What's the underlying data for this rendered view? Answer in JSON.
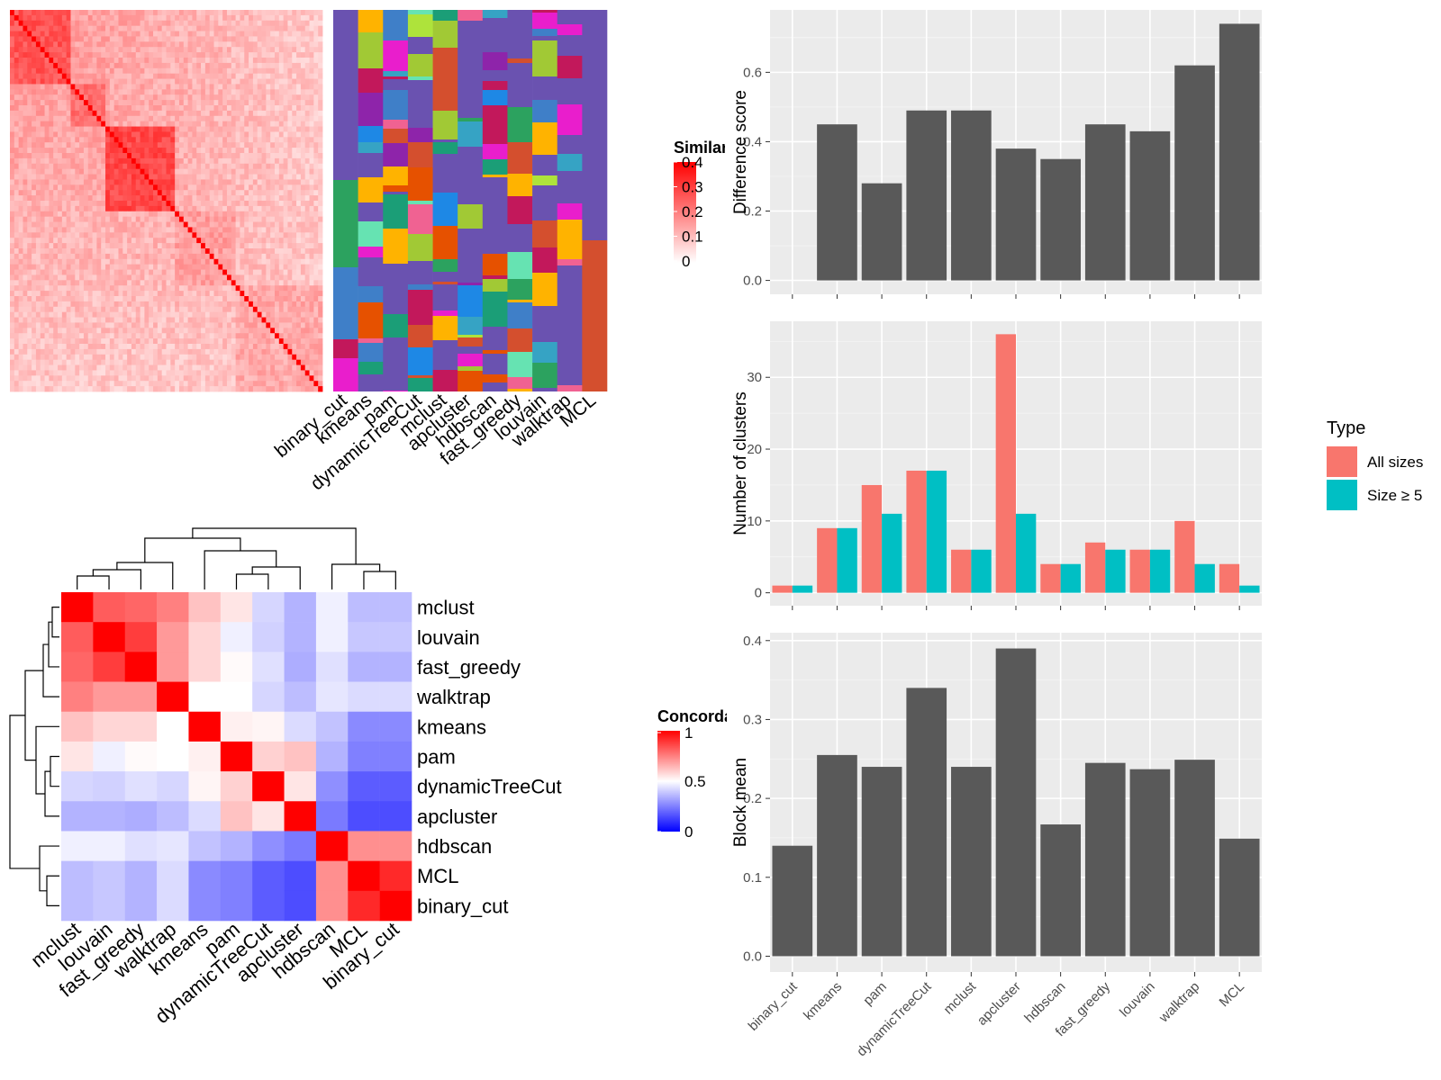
{
  "methods": [
    "binary_cut",
    "kmeans",
    "pam",
    "dynamicTreeCut",
    "mclust",
    "apcluster",
    "hdbscan",
    "fast_greedy",
    "louvain",
    "walktrap",
    "MCL"
  ],
  "similarity_legend": {
    "title": "Similarity",
    "ticks": [
      "0",
      "0.1",
      "0.2",
      "0.3",
      "0.4"
    ]
  },
  "concordance_legend": {
    "title": "Concordance",
    "ticks": [
      "0",
      "0.5",
      "1"
    ]
  },
  "type_legend": {
    "title": "Type",
    "items": [
      "All sizes",
      "Size ≥ 5"
    ]
  },
  "colors": {
    "bar_gray": "#595959",
    "panel_bg": "#EBEBEB",
    "grid": "#FFFFFF",
    "all_sizes": "#F8766D",
    "size_ge5": "#00BFC4",
    "heat_high": "#FF0000",
    "heat_mid": "#FFFFFF",
    "heat_low": "#0000FF",
    "cluster_default": "#6A52B0"
  },
  "chart_data": [
    {
      "type": "heatmap",
      "name": "similarity-heatmap",
      "description_scale": [
        0,
        0.4
      ],
      "legend": "Similarity",
      "cluster_columns": [
        "binary_cut",
        "kmeans",
        "pam",
        "dynamicTreeCut",
        "mclust",
        "apcluster",
        "hdbscan",
        "fast_greedy",
        "louvain",
        "walktrap",
        "MCL"
      ]
    },
    {
      "type": "heatmap",
      "name": "concordance-heatmap",
      "legend": "Concordance",
      "rows": [
        "mclust",
        "louvain",
        "fast_greedy",
        "walktrap",
        "kmeans",
        "pam",
        "dynamicTreeCut",
        "apcluster",
        "hdbscan",
        "MCL",
        "binary_cut"
      ],
      "columns": [
        "mclust",
        "louvain",
        "fast_greedy",
        "walktrap",
        "kmeans",
        "pam",
        "dynamicTreeCut",
        "apcluster",
        "hdbscan",
        "MCL",
        "binary_cut"
      ],
      "values": [
        [
          1.0,
          0.82,
          0.8,
          0.75,
          0.62,
          0.55,
          0.42,
          0.35,
          0.47,
          0.37,
          0.37
        ],
        [
          0.82,
          1.0,
          0.88,
          0.7,
          0.58,
          0.47,
          0.41,
          0.35,
          0.47,
          0.39,
          0.39
        ],
        [
          0.8,
          0.88,
          1.0,
          0.7,
          0.58,
          0.51,
          0.44,
          0.34,
          0.44,
          0.35,
          0.35
        ],
        [
          0.75,
          0.7,
          0.7,
          1.0,
          0.5,
          0.5,
          0.42,
          0.37,
          0.45,
          0.43,
          0.43
        ],
        [
          0.62,
          0.58,
          0.58,
          0.5,
          1.0,
          0.53,
          0.52,
          0.43,
          0.38,
          0.27,
          0.27
        ],
        [
          0.55,
          0.47,
          0.51,
          0.5,
          0.53,
          1.0,
          0.59,
          0.62,
          0.35,
          0.25,
          0.25
        ],
        [
          0.42,
          0.41,
          0.44,
          0.42,
          0.52,
          0.59,
          1.0,
          0.55,
          0.28,
          0.18,
          0.18
        ],
        [
          0.35,
          0.35,
          0.34,
          0.37,
          0.43,
          0.62,
          0.55,
          1.0,
          0.24,
          0.15,
          0.15
        ],
        [
          0.47,
          0.47,
          0.44,
          0.45,
          0.38,
          0.35,
          0.28,
          0.24,
          1.0,
          0.72,
          0.72
        ],
        [
          0.37,
          0.39,
          0.35,
          0.43,
          0.27,
          0.25,
          0.18,
          0.15,
          0.72,
          1.0,
          0.92
        ],
        [
          0.37,
          0.39,
          0.35,
          0.43,
          0.27,
          0.25,
          0.18,
          0.15,
          0.72,
          0.92,
          1.0
        ]
      ],
      "range": [
        0,
        1
      ]
    },
    {
      "type": "bar",
      "name": "difference-score",
      "categories": [
        "binary_cut",
        "kmeans",
        "pam",
        "dynamicTreeCut",
        "mclust",
        "apcluster",
        "hdbscan",
        "fast_greedy",
        "louvain",
        "walktrap",
        "MCL"
      ],
      "values": [
        0.0,
        0.45,
        0.28,
        0.49,
        0.49,
        0.38,
        0.35,
        0.45,
        0.43,
        0.62,
        0.74
      ],
      "ylabel": "Difference score",
      "yticks": [
        0.0,
        0.2,
        0.4,
        0.6
      ],
      "ylim": [
        -0.04,
        0.78
      ]
    },
    {
      "type": "bar",
      "name": "number-of-clusters",
      "categories": [
        "binary_cut",
        "kmeans",
        "pam",
        "dynamicTreeCut",
        "mclust",
        "apcluster",
        "hdbscan",
        "fast_greedy",
        "louvain",
        "walktrap",
        "MCL"
      ],
      "series": [
        {
          "name": "All sizes",
          "values": [
            1,
            9,
            15,
            17,
            6,
            36,
            4,
            7,
            6,
            10,
            4
          ]
        },
        {
          "name": "Size ≥ 5",
          "values": [
            1,
            9,
            11,
            17,
            6,
            11,
            4,
            6,
            6,
            4,
            1
          ]
        }
      ],
      "ylabel": "Number of clusters",
      "yticks": [
        0,
        10,
        20,
        30
      ],
      "ylim": [
        -1.8,
        37.8
      ]
    },
    {
      "type": "bar",
      "name": "block-mean",
      "categories": [
        "binary_cut",
        "kmeans",
        "pam",
        "dynamicTreeCut",
        "mclust",
        "apcluster",
        "hdbscan",
        "fast_greedy",
        "louvain",
        "walktrap",
        "MCL"
      ],
      "values": [
        0.14,
        0.255,
        0.24,
        0.34,
        0.24,
        0.39,
        0.167,
        0.245,
        0.237,
        0.249,
        0.149
      ],
      "ylabel": "Block mean",
      "yticks": [
        0.0,
        0.1,
        0.2,
        0.3,
        0.4
      ],
      "ylim": [
        -0.02,
        0.41
      ]
    }
  ]
}
